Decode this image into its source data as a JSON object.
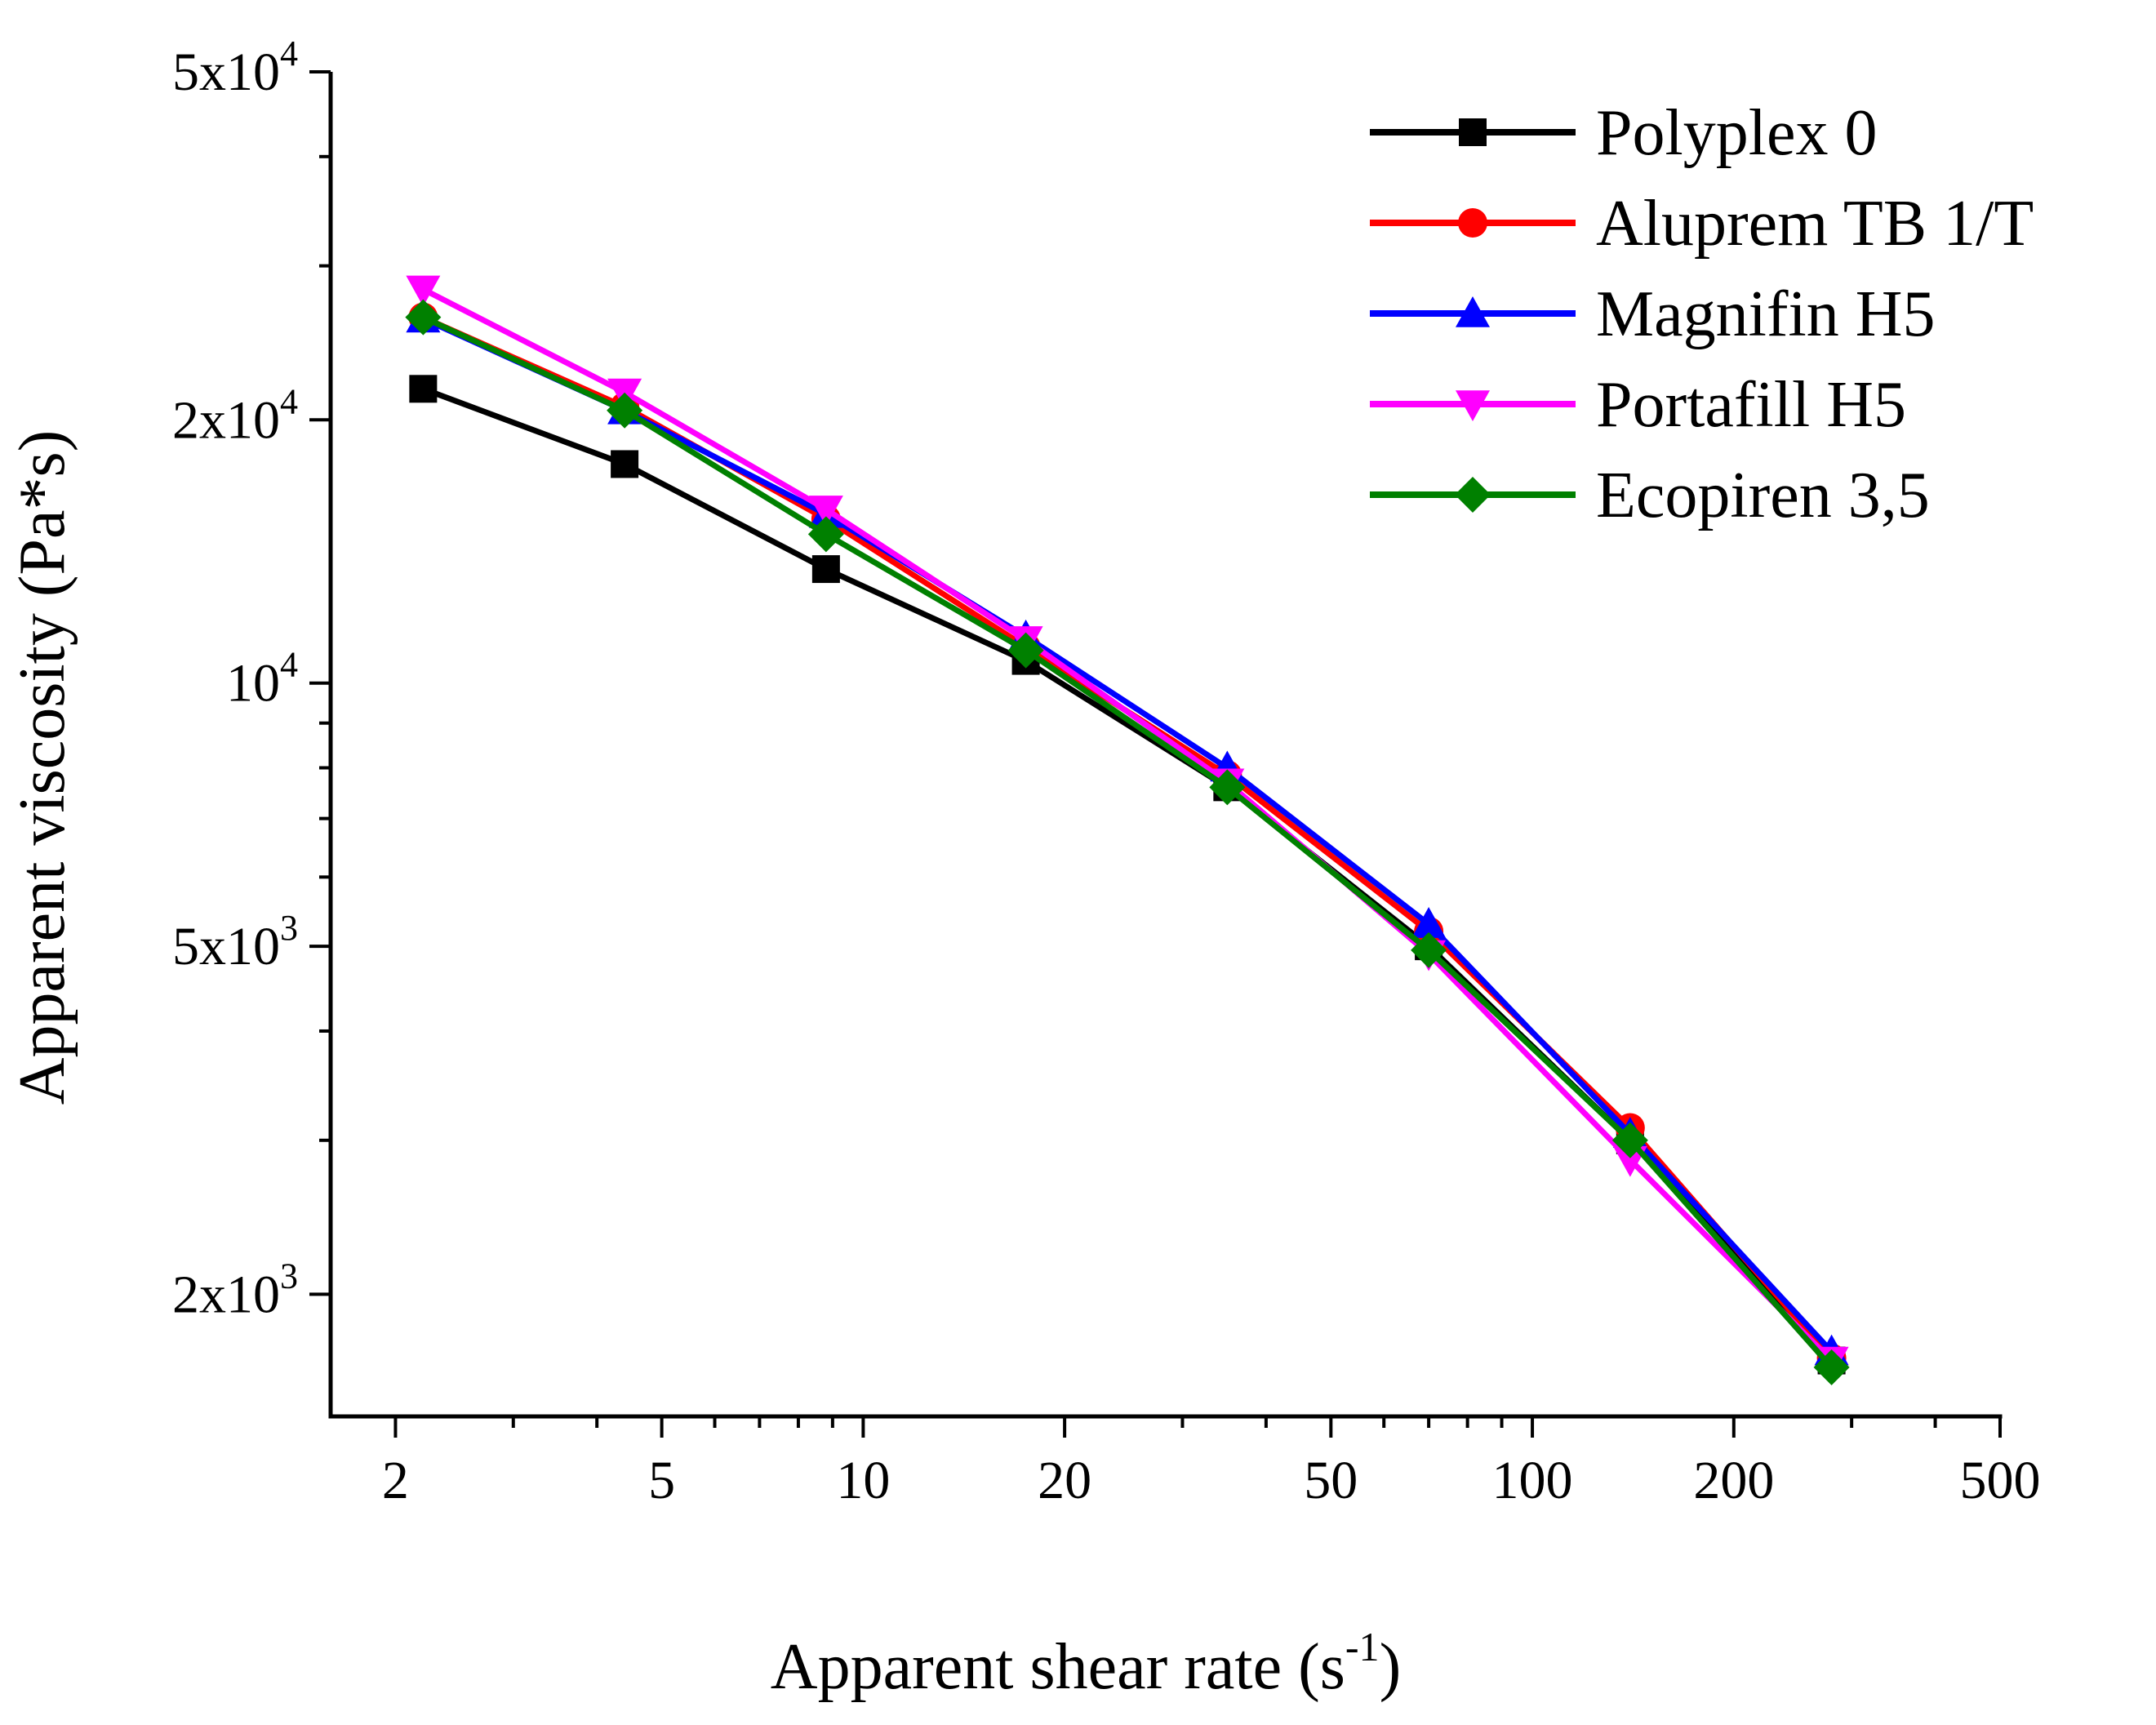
{
  "chart_data": {
    "type": "line",
    "xscale": "log",
    "yscale": "log",
    "xlabel": "Apparent shear rate (s",
    "xlabel_sup": "-1",
    "xlabel_end": ")",
    "ylabel": "Apparent viscosity (Pa*s)",
    "xlim": [
      1.6,
      500
    ],
    "ylim": [
      1450,
      50000
    ],
    "x_ticks": [
      {
        "value": 2,
        "label": "2"
      },
      {
        "value": 5,
        "label": "5"
      },
      {
        "value": 10,
        "label": "10"
      },
      {
        "value": 20,
        "label": "20"
      },
      {
        "value": 50,
        "label": "50"
      },
      {
        "value": 100,
        "label": "100"
      },
      {
        "value": 200,
        "label": "200"
      },
      {
        "value": 500,
        "label": "500"
      }
    ],
    "y_ticks": [
      {
        "value": 50000,
        "base": "5x10",
        "exp": "4"
      },
      {
        "value": 20000,
        "base": "2x10",
        "exp": "4"
      },
      {
        "value": 10000,
        "base": "10",
        "exp": "4"
      },
      {
        "value": 5000,
        "base": "5x10",
        "exp": "3"
      },
      {
        "value": 2000,
        "base": "2x10",
        "exp": "3"
      }
    ],
    "legend_position": "top-right",
    "series": [
      {
        "name": "Polyplex 0",
        "color": "#000000",
        "marker": "square",
        "x": [
          2.2,
          4.4,
          8.8,
          17.5,
          35,
          70,
          140,
          280
        ],
        "y": [
          21700,
          17800,
          13500,
          10600,
          7600,
          5000,
          3000,
          1680
        ]
      },
      {
        "name": "Aluprem TB 1/T",
        "color": "#ff0000",
        "marker": "circle",
        "x": [
          2.2,
          4.4,
          8.8,
          17.5,
          35,
          70,
          140,
          280
        ],
        "y": [
          26200,
          20700,
          15400,
          11000,
          7850,
          5200,
          3100,
          1690
        ]
      },
      {
        "name": "Magnifin H5",
        "color": "#0000ff",
        "marker": "triangle-up",
        "x": [
          2.2,
          4.4,
          8.8,
          17.5,
          35,
          70,
          140,
          280
        ],
        "y": [
          26100,
          20500,
          15600,
          11300,
          8000,
          5300,
          3050,
          1720
        ]
      },
      {
        "name": "Portafill H5",
        "color": "#ff00ff",
        "marker": "triangle-down",
        "x": [
          2.2,
          4.4,
          8.8,
          17.5,
          35,
          70,
          140,
          280
        ],
        "y": [
          28200,
          21500,
          15800,
          11200,
          7700,
          4900,
          2850,
          1680
        ]
      },
      {
        "name": "Ecopiren 3,5",
        "color": "#008000",
        "marker": "diamond",
        "x": [
          2.2,
          4.4,
          8.8,
          17.5,
          35,
          70,
          140,
          280
        ],
        "y": [
          26200,
          20500,
          14800,
          10900,
          7600,
          4950,
          3000,
          1650
        ]
      }
    ]
  }
}
